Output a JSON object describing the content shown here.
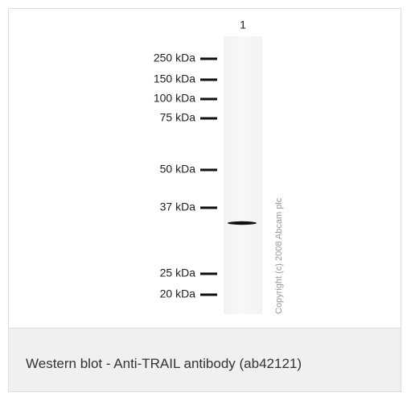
{
  "figure": {
    "lane_label": "1",
    "markers": [
      "250 kDa",
      "150 kDa",
      "100 kDa",
      "75 kDa",
      "50 kDa",
      "37 kDa",
      "25 kDa",
      "20 kDa"
    ],
    "copyright": "Copyright (c) 2008 Abcam plc",
    "caption": "Western blot - Anti-TRAIL antibody (ab42121)"
  }
}
